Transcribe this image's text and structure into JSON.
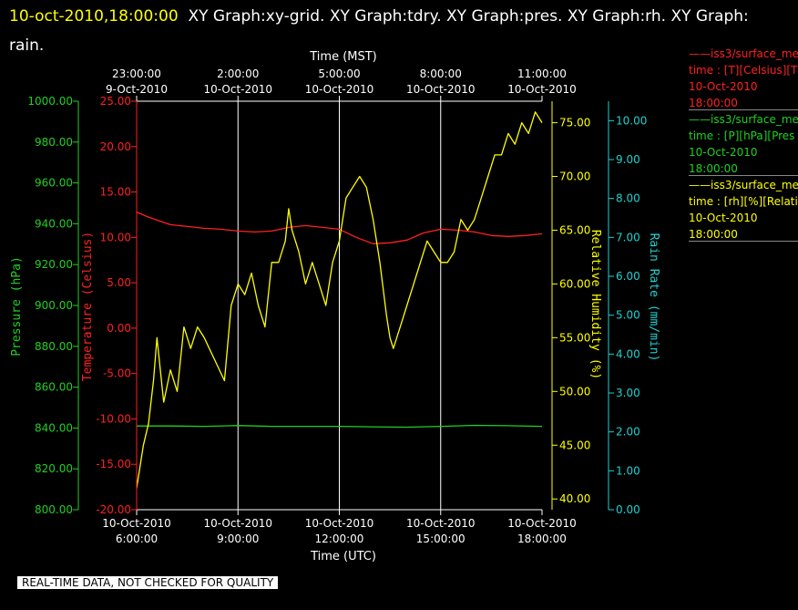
{
  "header": {
    "timestamp": "10-oct-2010,18:00:00",
    "titles": "XY Graph:xy-grid.  XY Graph:tdry.  XY Graph:pres.  XY Graph:rh.  XY Graph: rain."
  },
  "footer": {
    "text": "REAL-TIME DATA, NOT CHECKED FOR QUALITY"
  },
  "legend": [
    {
      "line1": "iss3/surface_me",
      "line2": "time : [T][Celsius][T",
      "line3": "10-Oct-2010",
      "line4": "18:00:00",
      "color": "#ff2020"
    },
    {
      "line1": "iss3/surface_me",
      "line2": "time : [P][hPa][Pres",
      "line3": "10-Oct-2010",
      "line4": "18:00:00",
      "color": "#20d020"
    },
    {
      "line1": "iss3/surface_me",
      "line2": "time : [rh][%][Relati",
      "line3": "10-Oct-2010",
      "line4": "18:00:00",
      "color": "#ffff00"
    }
  ],
  "chart_data": {
    "type": "line",
    "x_axis_bottom": {
      "label": "Time (UTC)",
      "range_hours": [
        6,
        18
      ],
      "ticks": [
        {
          "value": 6,
          "date": "10-Oct-2010",
          "time": "6:00:00"
        },
        {
          "value": 9,
          "date": "10-Oct-2010",
          "time": "9:00:00"
        },
        {
          "value": 12,
          "date": "10-Oct-2010",
          "time": "12:00:00"
        },
        {
          "value": 15,
          "date": "10-Oct-2010",
          "time": "15:00:00"
        },
        {
          "value": 18,
          "date": "10-Oct-2010",
          "time": "18:00:00"
        }
      ]
    },
    "x_axis_top": {
      "label": "Time (MST)",
      "ticks": [
        {
          "value": 6,
          "time": "23:00:00",
          "date": "9-Oct-2010"
        },
        {
          "value": 9,
          "time": "2:00:00",
          "date": "10-Oct-2010"
        },
        {
          "value": 12,
          "time": "5:00:00",
          "date": "10-Oct-2010"
        },
        {
          "value": 15,
          "time": "8:00:00",
          "date": "10-Oct-2010"
        },
        {
          "value": 18,
          "time": "11:00:00",
          "date": "10-Oct-2010"
        }
      ]
    },
    "axes": {
      "pressure": {
        "label": "Pressure (hPa)",
        "range": [
          800,
          1000
        ],
        "color": "#20d020",
        "ticks": [
          "800.00",
          "820.00",
          "840.00",
          "860.00",
          "880.00",
          "900.00",
          "920.00",
          "940.00",
          "960.00",
          "980.00",
          "1000.00"
        ]
      },
      "temperature": {
        "label": "Temperature (Celsius)",
        "range": [
          -20,
          25
        ],
        "color": "#ff2020",
        "ticks": [
          "-20.00",
          "-15.00",
          "-10.00",
          "-5.00",
          "0.00",
          "5.00",
          "10.00",
          "15.00",
          "20.00",
          "25.00"
        ]
      },
      "humidity": {
        "label": "Relative Humidity (%)",
        "range": [
          39,
          77
        ],
        "color": "#ffff00",
        "ticks": [
          "40.00",
          "45.00",
          "50.00",
          "55.00",
          "60.00",
          "65.00",
          "70.00",
          "75.00"
        ]
      },
      "rain": {
        "label": "Rain Rate (mm/min)",
        "range": [
          0,
          10.5
        ],
        "color": "#20d0d0",
        "ticks": [
          "0.00",
          "1.00",
          "2.00",
          "3.00",
          "4.00",
          "5.00",
          "6.00",
          "7.00",
          "8.00",
          "9.00",
          "10.00"
        ]
      }
    },
    "grid": "vertical",
    "series": [
      {
        "name": "Temperature",
        "axis": "temperature",
        "color": "#ff2020",
        "x": [
          6.0,
          6.3,
          6.6,
          7.0,
          7.5,
          8.0,
          8.5,
          9.0,
          9.5,
          10.0,
          10.5,
          11.0,
          11.5,
          12.0,
          12.5,
          13.0,
          13.5,
          14.0,
          14.5,
          15.0,
          15.5,
          16.0,
          16.5,
          17.0,
          17.5,
          18.0
        ],
        "y": [
          12.8,
          12.3,
          11.9,
          11.4,
          11.2,
          11.0,
          10.9,
          10.7,
          10.6,
          10.7,
          11.1,
          11.3,
          11.1,
          10.9,
          10.0,
          9.3,
          9.4,
          9.7,
          10.5,
          10.9,
          10.8,
          10.6,
          10.2,
          10.1,
          10.2,
          10.4
        ]
      },
      {
        "name": "Pressure",
        "axis": "pressure",
        "color": "#20d020",
        "x": [
          6.0,
          7.0,
          8.0,
          9.0,
          10.0,
          11.0,
          12.0,
          13.0,
          14.0,
          15.0,
          16.0,
          17.0,
          18.0
        ],
        "y": [
          841.0,
          841.0,
          840.8,
          841.2,
          840.8,
          840.8,
          840.8,
          840.6,
          840.4,
          840.8,
          841.3,
          841.1,
          840.8
        ]
      },
      {
        "name": "Relative Humidity",
        "axis": "humidity",
        "color": "#ffff00",
        "x": [
          6.0,
          6.1,
          6.2,
          6.35,
          6.5,
          6.6,
          6.8,
          7.0,
          7.2,
          7.4,
          7.6,
          7.8,
          8.0,
          8.3,
          8.6,
          8.8,
          9.0,
          9.2,
          9.4,
          9.6,
          9.8,
          10.0,
          10.2,
          10.4,
          10.5,
          10.6,
          10.8,
          11.0,
          11.2,
          11.4,
          11.6,
          11.8,
          12.0,
          12.2,
          12.4,
          12.6,
          12.8,
          13.0,
          13.2,
          13.4,
          13.5,
          13.6,
          13.8,
          14.0,
          14.2,
          14.4,
          14.6,
          14.8,
          15.0,
          15.2,
          15.4,
          15.6,
          15.8,
          16.0,
          16.2,
          16.4,
          16.6,
          16.8,
          17.0,
          17.2,
          17.4,
          17.6,
          17.8,
          18.0
        ],
        "y": [
          41,
          43,
          45,
          47,
          51,
          55,
          49,
          52,
          50,
          56,
          54,
          56,
          55,
          53,
          51,
          58,
          60,
          59,
          61,
          58,
          56,
          62,
          62,
          64,
          67,
          65,
          63,
          60,
          62,
          60,
          58,
          62,
          64,
          68,
          69,
          70,
          69,
          66,
          62,
          57,
          55,
          54,
          56,
          58,
          60,
          62,
          64,
          63,
          62,
          62,
          63,
          66,
          65,
          66,
          68,
          70,
          72,
          72,
          74,
          73,
          75,
          74,
          76,
          75
        ]
      }
    ]
  }
}
